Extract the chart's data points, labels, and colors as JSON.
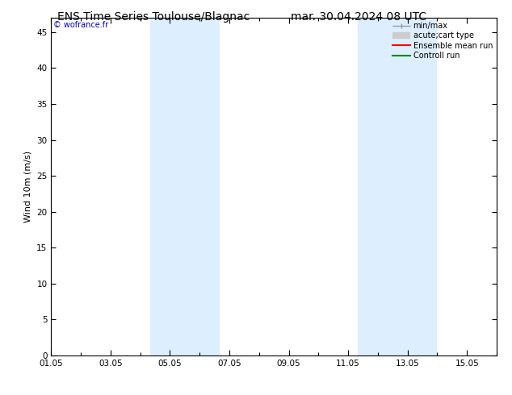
{
  "title_left": "ENS Time Series Toulouse/Blagnac",
  "title_right": "mar. 30.04.2024 08 UTC",
  "ylabel": "Wind 10m (m/s)",
  "watermark": "© wofrance.fr",
  "ylim": [
    0,
    47
  ],
  "yticks": [
    0,
    5,
    10,
    15,
    20,
    25,
    30,
    35,
    40,
    45
  ],
  "xtick_labels": [
    "01.05",
    "03.05",
    "05.05",
    "07.05",
    "09.05",
    "11.05",
    "13.05",
    "15.05"
  ],
  "xtick_positions": [
    0,
    2,
    4,
    6,
    8,
    10,
    12,
    14
  ],
  "xlim": [
    0,
    15
  ],
  "blue_bands": [
    [
      3.33,
      5.0
    ],
    [
      5.0,
      5.67
    ],
    [
      10.33,
      11.67
    ],
    [
      11.67,
      13.0
    ]
  ],
  "band_color": "#ddeeff",
  "background_color": "#ffffff",
  "spine_color": "#000000",
  "legend_items": [
    {
      "label": "min/max",
      "color": "#999999",
      "lw": 1.0,
      "type": "line_with_caps"
    },
    {
      "label": "acute;cart type",
      "color": "#cccccc",
      "lw": 6,
      "type": "thick_line"
    },
    {
      "label": "Ensemble mean run",
      "color": "#ff0000",
      "lw": 1.5,
      "type": "line"
    },
    {
      "label": "Controll run",
      "color": "#008800",
      "lw": 1.5,
      "type": "line"
    }
  ],
  "title_fontsize": 10,
  "axis_fontsize": 8,
  "tick_fontsize": 7.5,
  "watermark_color": "#0000cc",
  "watermark_fontsize": 7
}
